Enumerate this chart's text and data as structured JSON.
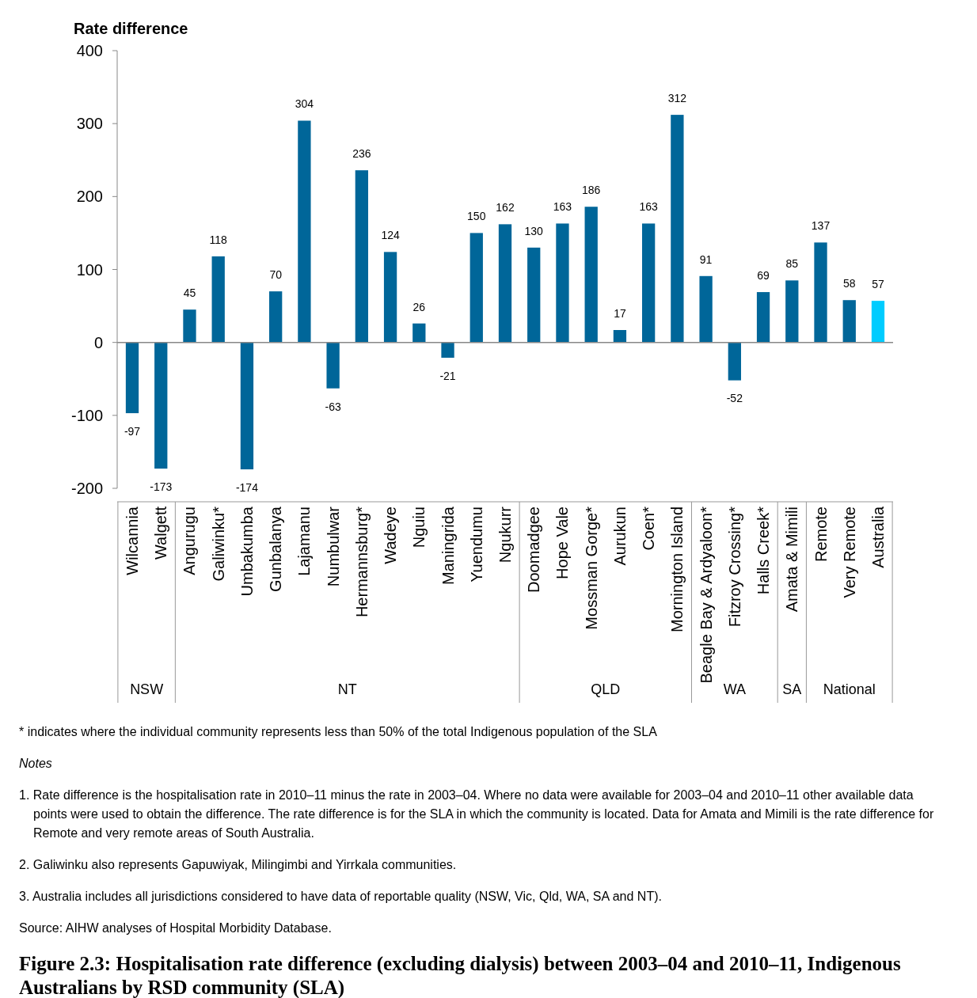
{
  "chart_data": {
    "type": "bar",
    "title": "Figure 2.3: Hospitalisation rate difference (excluding dialysis) between 2003–04 and 2010–11, Indigenous Australians by RSD community (SLA)",
    "ylabel": "Rate difference",
    "categories": [
      "Wilcannia",
      "Walgett",
      "Angurugu",
      "Galiwinku*",
      "Umbakumba",
      "Gunbalanya",
      "Lajamanu",
      "Numbulwar",
      "Hermannsburg*",
      "Wadeye",
      "Nguiu",
      "Maningrida",
      "Yuendumu",
      "Ngukurr",
      "Doomadgee",
      "Hope Vale",
      "Mossman Gorge*",
      "Aurukun",
      "Coen*",
      "Mornington Island",
      "Beagle Bay & Ardyaloon*",
      "Fitzroy Crossing*",
      "Halls Creek*",
      "Amata & Mimili",
      "Remote",
      "Very Remote",
      "Australia"
    ],
    "values": [
      -97,
      -173,
      45,
      118,
      -174,
      70,
      304,
      -63,
      236,
      124,
      26,
      -21,
      150,
      162,
      130,
      163,
      186,
      17,
      163,
      312,
      91,
      -52,
      69,
      85,
      137,
      58,
      57
    ],
    "colors": [
      "#006699",
      "#006699",
      "#006699",
      "#006699",
      "#006699",
      "#006699",
      "#006699",
      "#006699",
      "#006699",
      "#006699",
      "#006699",
      "#006699",
      "#006699",
      "#006699",
      "#006699",
      "#006699",
      "#006699",
      "#006699",
      "#006699",
      "#006699",
      "#006699",
      "#006699",
      "#006699",
      "#006699",
      "#006699",
      "#006699",
      "#00ccff"
    ],
    "data_labels": true,
    "ylim": [
      -200,
      400
    ],
    "yticks": [
      -200,
      -100,
      0,
      100,
      200,
      300,
      400
    ],
    "annotations": [
      "NSW",
      "NT",
      "QLD",
      "WA",
      "SA",
      "National",
      "* indicates where the individual community represents less than 50% of the total Indigenous population of the SLA",
      "Notes",
      "1. Rate difference is the hospitalisation rate in 2010–11 minus the rate in 2003–04. Where no data were available for 2003–04 and 2010–11 other available data points were used to obtain the difference. The rate difference is for the SLA in which the community is located. Data for Amata and Mimili is the rate difference for Remote and very remote areas of South Australia.",
      "2. Galiwinku also represents Gapuwiyak, Milingimbi and Yirrkala communities.",
      "3. Australia includes all jurisdictions considered to have data of reportable quality (NSW, Vic, Qld, WA, SA and NT).",
      "Source: AIHW analyses of Hospital Morbidity Database."
    ]
  }
}
